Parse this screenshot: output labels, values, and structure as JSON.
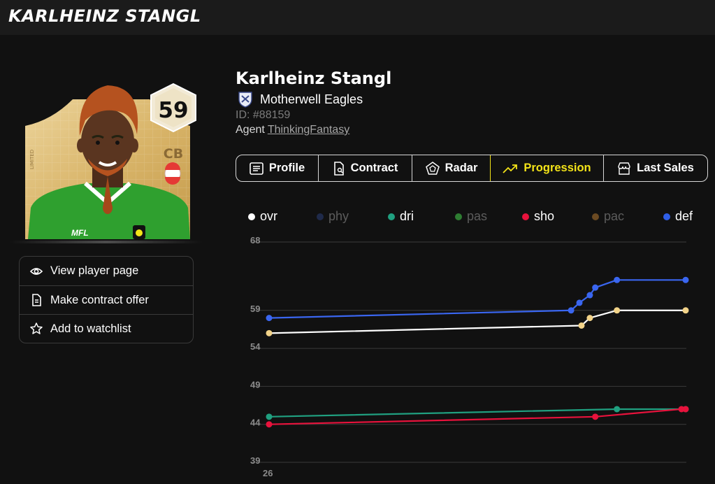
{
  "app": {
    "title": "KARLHEINZ STANGL"
  },
  "card": {
    "rating": "59",
    "position": "CB",
    "edition": "LIMITED",
    "brand": "MFL",
    "colors": {
      "card_gold": "#d9b56a",
      "shirt_green": "#2fa02f",
      "hair": "#b5521f",
      "skin": "#5a3520"
    }
  },
  "actions": [
    {
      "label": "View player page",
      "icon": "eye-icon"
    },
    {
      "label": "Make contract offer",
      "icon": "document-icon"
    },
    {
      "label": "Add to watchlist",
      "icon": "star-icon"
    }
  ],
  "player": {
    "name": "Karlheinz Stangl",
    "club": "Motherwell Eagles",
    "id_text": "ID: #88159",
    "agent_label": "Agent",
    "agent_name": "ThinkingFantasy"
  },
  "tabs": [
    {
      "label": "Profile",
      "icon": "list-icon",
      "active": false
    },
    {
      "label": "Contract",
      "icon": "contract-icon",
      "active": false
    },
    {
      "label": "Radar",
      "icon": "radar-icon",
      "active": false
    },
    {
      "label": "Progression",
      "icon": "trend-up-icon",
      "active": true
    },
    {
      "label": "Last Sales",
      "icon": "store-icon",
      "active": false
    }
  ],
  "theme": {
    "accent": "#f3e318",
    "background": "#111111",
    "topbar": "#1b1b1b"
  },
  "chart_data": {
    "type": "line",
    "y_ticks": [
      39,
      44,
      49,
      54,
      59,
      68
    ],
    "ylim": [
      39,
      68
    ],
    "x_tick_labels": [
      "26"
    ],
    "xlim": [
      0,
      100
    ],
    "grid": true,
    "legend_position": "top",
    "legend": [
      {
        "name": "ovr",
        "color": "#ffffff",
        "dim": false
      },
      {
        "name": "phy",
        "color": "#1f2a4a",
        "dim": true
      },
      {
        "name": "dri",
        "color": "#20a080",
        "dim": false
      },
      {
        "name": "pas",
        "color": "#2e7d32",
        "dim": true
      },
      {
        "name": "sho",
        "color": "#e8123c",
        "dim": false
      },
      {
        "name": "pac",
        "color": "#6b4a22",
        "dim": true
      },
      {
        "name": "def",
        "color": "#2f5fe8",
        "dim": false
      }
    ],
    "series": [
      {
        "name": "def",
        "color": "#3a66f0",
        "marker_color": "#3a66f0",
        "points": [
          [
            0,
            58
          ],
          [
            72.5,
            59
          ],
          [
            74.5,
            60
          ],
          [
            77,
            61
          ],
          [
            78.3,
            62
          ],
          [
            83.5,
            63
          ],
          [
            100,
            63
          ]
        ]
      },
      {
        "name": "ovr",
        "color": "#ffffff",
        "marker_color": "#f2d389",
        "points": [
          [
            0,
            56
          ],
          [
            75,
            57
          ],
          [
            77,
            58
          ],
          [
            83.5,
            59
          ],
          [
            100,
            59
          ]
        ]
      },
      {
        "name": "dri",
        "color": "#20a080",
        "marker_color": "#20a080",
        "points": [
          [
            0,
            45
          ],
          [
            83.5,
            46
          ],
          [
            100,
            46
          ]
        ]
      },
      {
        "name": "sho",
        "color": "#e8123c",
        "marker_color": "#e8123c",
        "points": [
          [
            0,
            44
          ],
          [
            78.3,
            45
          ],
          [
            99,
            46
          ],
          [
            100,
            46
          ]
        ]
      }
    ]
  }
}
